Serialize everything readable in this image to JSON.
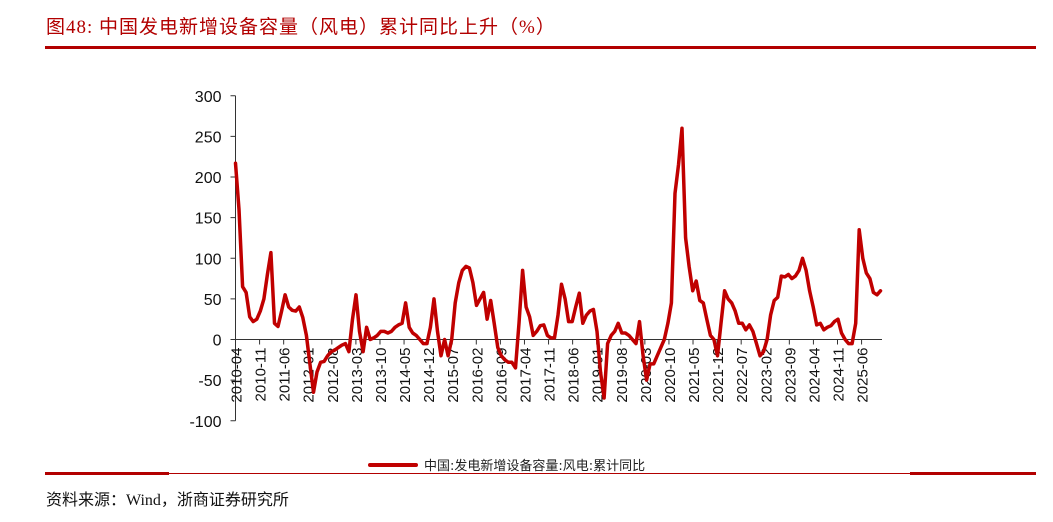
{
  "header": {
    "title": "图48:  中国发电新增设备容量（风电）累计同比上升（%）"
  },
  "footer": {
    "source": "资料来源：Wind，浙商证券研究所"
  },
  "legend": {
    "items": [
      {
        "label": "中国:发电新增设备容量:风电:累计同比",
        "color": "#c00000"
      }
    ]
  },
  "colors": {
    "accent": "#b20000",
    "series": "#c00000",
    "axis": "#333333"
  },
  "chart_data": {
    "type": "line",
    "title": "中国发电新增设备容量（风电）累计同比上升（%）",
    "xlabel": "",
    "ylabel": "",
    "ylim": [
      -100,
      300
    ],
    "yticks": [
      -100,
      -50,
      0,
      50,
      100,
      150,
      200,
      250,
      300
    ],
    "grid": false,
    "legend_position": "bottom",
    "x_tick_labels": [
      "2010-04",
      "2010-11",
      "2011-06",
      "2012-01",
      "2012-08",
      "2013-03",
      "2013-10",
      "2014-05",
      "2014-12",
      "2015-07",
      "2016-02",
      "2016-09",
      "2017-04",
      "2017-11",
      "2018-06",
      "2019-01",
      "2019-08",
      "2020-03",
      "2020-10",
      "2021-05",
      "2021-12",
      "2022-07",
      "2023-02",
      "2023-09",
      "2024-04",
      "2024-11",
      "2025-06"
    ],
    "x_start": "2010-04",
    "x_step": "1 month",
    "series": [
      {
        "name": "中国:发电新增设备容量:风电:累计同比",
        "values": [
          217,
          160,
          65,
          58,
          28,
          22,
          25,
          35,
          50,
          80,
          107,
          20,
          16,
          35,
          55,
          40,
          36,
          35,
          40,
          27,
          5,
          -30,
          -65,
          -40,
          -28,
          -27,
          -20,
          -15,
          -13,
          -10,
          -7,
          -5,
          -15,
          25,
          55,
          10,
          -15,
          15,
          0,
          2,
          5,
          10,
          10,
          8,
          10,
          15,
          18,
          20,
          45,
          15,
          8,
          5,
          0,
          -5,
          -5,
          15,
          50,
          10,
          -20,
          0,
          -20,
          0,
          45,
          70,
          85,
          90,
          88,
          70,
          42,
          50,
          58,
          25,
          48,
          20,
          -10,
          -20,
          -25,
          -28,
          -28,
          -35,
          20,
          85,
          40,
          28,
          5,
          10,
          17,
          18,
          5,
          2,
          2,
          30,
          68,
          50,
          22,
          22,
          40,
          57,
          20,
          30,
          35,
          37,
          10,
          -40,
          -72,
          -5,
          5,
          10,
          20,
          8,
          8,
          5,
          0,
          -5,
          22,
          -20,
          -50,
          -30,
          -30,
          -20,
          -10,
          0,
          20,
          45,
          180,
          215,
          260,
          125,
          90,
          60,
          72,
          48,
          45,
          25,
          5,
          0,
          -20,
          20,
          60,
          50,
          45,
          35,
          20,
          20,
          12,
          18,
          10,
          -5,
          -20,
          -15,
          0,
          30,
          48,
          52,
          78,
          77,
          80,
          75,
          78,
          85,
          100,
          85,
          60,
          40,
          18,
          20,
          12,
          15,
          17,
          22,
          25,
          8,
          0,
          -5,
          -5,
          20,
          135,
          100,
          82,
          75,
          58,
          55,
          60
        ]
      }
    ]
  }
}
